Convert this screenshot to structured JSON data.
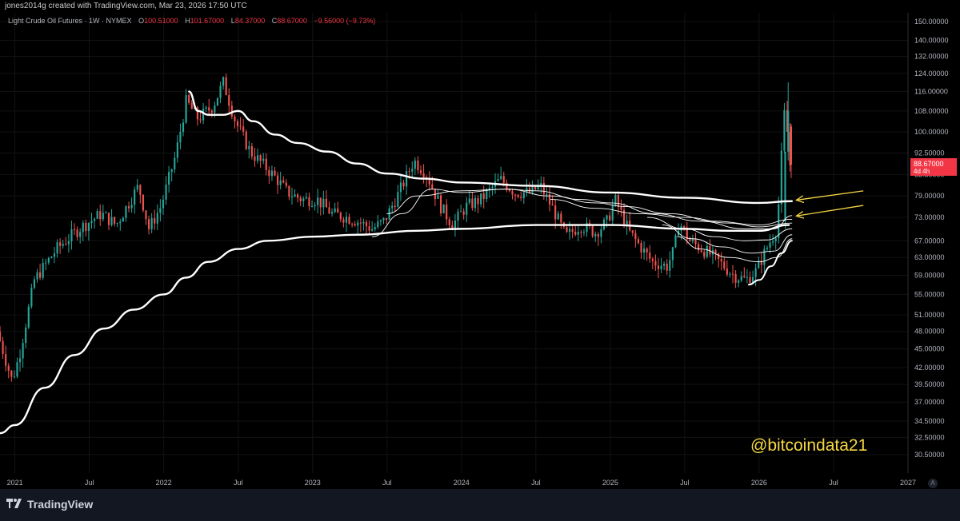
{
  "header": {
    "created_by": "jones2014g created with TradingView.com, Mar 23, 2026 17:50 UTC"
  },
  "legend": {
    "symbol": "Light Crude Oil Futures · 1W · NYMEX",
    "open_label": "O",
    "open": "100.51000",
    "high_label": "H",
    "high": "101.67000",
    "low_label": "L",
    "low": "84.37000",
    "close_label": "C",
    "close": "88.67000",
    "change": "−9.56000 (−9.73%)"
  },
  "price_tag": {
    "price": "88.67000",
    "countdown": "4d 4h",
    "color": "#f23645"
  },
  "watermark": "@bitcoindata21",
  "brand": "TradingView",
  "auto_button": "A",
  "colors": {
    "up": "#26a69a",
    "down": "#ef5350",
    "ma": "#ffffff",
    "arrow": "#f5d742"
  },
  "chart_data": {
    "type": "candlestick",
    "y_scale": "log",
    "ylim": [
      28.5,
      155
    ],
    "y_ticks": [
      "150.00000",
      "140.00000",
      "132.00000",
      "124.00000",
      "116.00000",
      "108.00000",
      "100.00000",
      "92.50000",
      "85.50000",
      "79.00000",
      "73.00000",
      "67.00000",
      "63.00000",
      "59.00000",
      "55.00000",
      "51.00000",
      "48.00000",
      "45.00000",
      "42.00000",
      "39.50000",
      "37.00000",
      "34.50000",
      "32.50000",
      "30.50000"
    ],
    "y_tick_values": [
      150,
      140,
      132,
      124,
      116,
      108,
      100,
      92.5,
      85.5,
      79,
      73,
      67,
      63,
      59,
      55,
      51,
      48,
      45,
      42,
      39.5,
      37,
      34.5,
      32.5,
      30.5
    ],
    "x_ticks": [
      "2021",
      "Jul",
      "2022",
      "Jul",
      "2023",
      "Jul",
      "2024",
      "Jul",
      "2025",
      "Jul",
      "2026",
      "Jul",
      "2027"
    ],
    "x_tick_values": [
      2021.0,
      2021.5,
      2022.0,
      2022.5,
      2023.0,
      2023.5,
      2024.0,
      2024.5,
      2025.0,
      2025.5,
      2026.0,
      2026.5,
      2027.0
    ],
    "xlim": [
      2020.9,
      2027.0
    ],
    "price_path": [
      [
        2020.9,
        48
      ],
      [
        2021.0,
        40
      ],
      [
        2021.05,
        44
      ],
      [
        2021.15,
        58
      ],
      [
        2021.3,
        65
      ],
      [
        2021.45,
        70
      ],
      [
        2021.6,
        74
      ],
      [
        2021.7,
        71
      ],
      [
        2021.85,
        82
      ],
      [
        2021.92,
        70
      ],
      [
        2022.0,
        76
      ],
      [
        2022.1,
        92
      ],
      [
        2022.17,
        112
      ],
      [
        2022.25,
        105
      ],
      [
        2022.35,
        110
      ],
      [
        2022.42,
        120
      ],
      [
        2022.5,
        104
      ],
      [
        2022.6,
        93
      ],
      [
        2022.7,
        88
      ],
      [
        2022.78,
        84
      ],
      [
        2022.85,
        80
      ],
      [
        2022.95,
        78
      ],
      [
        2023.05,
        78
      ],
      [
        2023.15,
        74
      ],
      [
        2023.25,
        73
      ],
      [
        2023.32,
        72
      ],
      [
        2023.42,
        70
      ],
      [
        2023.5,
        72
      ],
      [
        2023.6,
        80
      ],
      [
        2023.7,
        90
      ],
      [
        2023.78,
        86
      ],
      [
        2023.88,
        76
      ],
      [
        2023.96,
        71
      ],
      [
        2024.05,
        76
      ],
      [
        2024.15,
        78
      ],
      [
        2024.28,
        84
      ],
      [
        2024.38,
        80
      ],
      [
        2024.48,
        80
      ],
      [
        2024.55,
        82
      ],
      [
        2024.65,
        74
      ],
      [
        2024.72,
        68
      ],
      [
        2024.82,
        71
      ],
      [
        2024.92,
        69
      ],
      [
        2025.0,
        72
      ],
      [
        2025.05,
        78
      ],
      [
        2025.15,
        69
      ],
      [
        2025.3,
        62
      ],
      [
        2025.4,
        61
      ],
      [
        2025.45,
        65
      ],
      [
        2025.48,
        72
      ],
      [
        2025.55,
        67
      ],
      [
        2025.68,
        64
      ],
      [
        2025.75,
        62
      ],
      [
        2025.85,
        59
      ],
      [
        2025.93,
        58
      ],
      [
        2026.0,
        60
      ],
      [
        2026.08,
        66
      ],
      [
        2026.14,
        70
      ],
      [
        2026.17,
        92
      ],
      [
        2026.19,
        108
      ],
      [
        2026.21,
        99
      ],
      [
        2026.225,
        88.67
      ]
    ],
    "moving_averages": [
      {
        "name": "",
        "width": 2.4,
        "points": [
          [
            2020.9,
            33
          ],
          [
            2021.0,
            34
          ],
          [
            2021.2,
            39
          ],
          [
            2021.4,
            44
          ],
          [
            2021.6,
            48.5
          ],
          [
            2021.8,
            52
          ],
          [
            2022.0,
            55
          ],
          [
            2022.15,
            58.5
          ],
          [
            2022.3,
            62
          ],
          [
            2022.5,
            65
          ],
          [
            2022.7,
            67
          ],
          [
            2023.0,
            68
          ],
          [
            2023.3,
            68.5
          ],
          [
            2023.7,
            69.5
          ],
          [
            2024.0,
            70
          ],
          [
            2024.5,
            71
          ],
          [
            2025.0,
            71
          ],
          [
            2025.5,
            70
          ],
          [
            2025.8,
            69.5
          ],
          [
            2026.0,
            69.5
          ],
          [
            2026.2,
            71
          ]
        ]
      },
      {
        "name": "",
        "width": 2.4,
        "points": [
          [
            2022.17,
            116
          ],
          [
            2022.23,
            108
          ],
          [
            2022.3,
            106.5
          ],
          [
            2022.4,
            106.5
          ],
          [
            2022.5,
            108
          ],
          [
            2022.6,
            104
          ],
          [
            2022.75,
            99
          ],
          [
            2022.9,
            96
          ],
          [
            2023.1,
            93
          ],
          [
            2023.3,
            89
          ],
          [
            2023.5,
            85.8
          ],
          [
            2023.75,
            84.2
          ],
          [
            2024.0,
            83
          ],
          [
            2024.5,
            82
          ],
          [
            2025.0,
            80
          ],
          [
            2025.5,
            78.5
          ],
          [
            2026.0,
            77
          ],
          [
            2026.22,
            77.5
          ]
        ]
      },
      {
        "name": "",
        "width": 0.9,
        "points": [
          [
            2023.4,
            68
          ],
          [
            2023.6,
            74
          ],
          [
            2023.8,
            81
          ],
          [
            2024.0,
            80
          ],
          [
            2024.3,
            81
          ],
          [
            2024.5,
            80.5
          ],
          [
            2024.8,
            78
          ],
          [
            2025.0,
            77
          ],
          [
            2025.3,
            74
          ],
          [
            2025.6,
            72
          ],
          [
            2025.9,
            70
          ],
          [
            2026.1,
            70
          ],
          [
            2026.22,
            73.5
          ]
        ]
      },
      {
        "name": "",
        "width": 0.9,
        "points": [
          [
            2023.5,
            74
          ],
          [
            2023.7,
            79
          ],
          [
            2024.0,
            80.5
          ],
          [
            2024.3,
            81
          ],
          [
            2024.6,
            79
          ],
          [
            2024.9,
            77
          ],
          [
            2025.1,
            76
          ],
          [
            2025.4,
            74
          ],
          [
            2025.7,
            72
          ],
          [
            2026.0,
            71
          ],
          [
            2026.22,
            72.5
          ]
        ]
      },
      {
        "name": "",
        "width": 0.9,
        "points": [
          [
            2024.6,
            78
          ],
          [
            2024.9,
            75.5
          ],
          [
            2025.2,
            74
          ],
          [
            2025.5,
            73
          ],
          [
            2025.8,
            71.5
          ],
          [
            2026.0,
            70.5
          ],
          [
            2026.22,
            71.5
          ]
        ]
      },
      {
        "name": "",
        "width": 0.9,
        "points": [
          [
            2025.25,
            73
          ],
          [
            2025.5,
            70
          ],
          [
            2025.7,
            68
          ],
          [
            2025.9,
            67
          ],
          [
            2026.05,
            67.2
          ],
          [
            2026.22,
            70
          ]
        ]
      },
      {
        "name": "",
        "width": 0.9,
        "points": [
          [
            2025.35,
            71
          ],
          [
            2025.55,
            67.5
          ],
          [
            2025.75,
            65.5
          ],
          [
            2025.95,
            64
          ],
          [
            2026.1,
            64.5
          ],
          [
            2026.22,
            68.5
          ]
        ]
      },
      {
        "name": "",
        "width": 0.9,
        "points": [
          [
            2025.45,
            68
          ],
          [
            2025.6,
            65
          ],
          [
            2025.8,
            63
          ],
          [
            2026.0,
            62
          ],
          [
            2026.12,
            63
          ],
          [
            2026.22,
            67.5
          ]
        ]
      },
      {
        "name": "",
        "width": 2.0,
        "points": [
          [
            2025.93,
            57
          ],
          [
            2026.0,
            58
          ],
          [
            2026.08,
            61
          ],
          [
            2026.15,
            64
          ],
          [
            2026.22,
            67
          ]
        ]
      }
    ],
    "annotations": [
      {
        "type": "arrow",
        "from": [
          2026.7,
          80.5
        ],
        "to": [
          2026.25,
          77.8
        ]
      },
      {
        "type": "arrow",
        "from": [
          2026.7,
          76.3
        ],
        "to": [
          2026.25,
          73.4
        ]
      }
    ]
  }
}
